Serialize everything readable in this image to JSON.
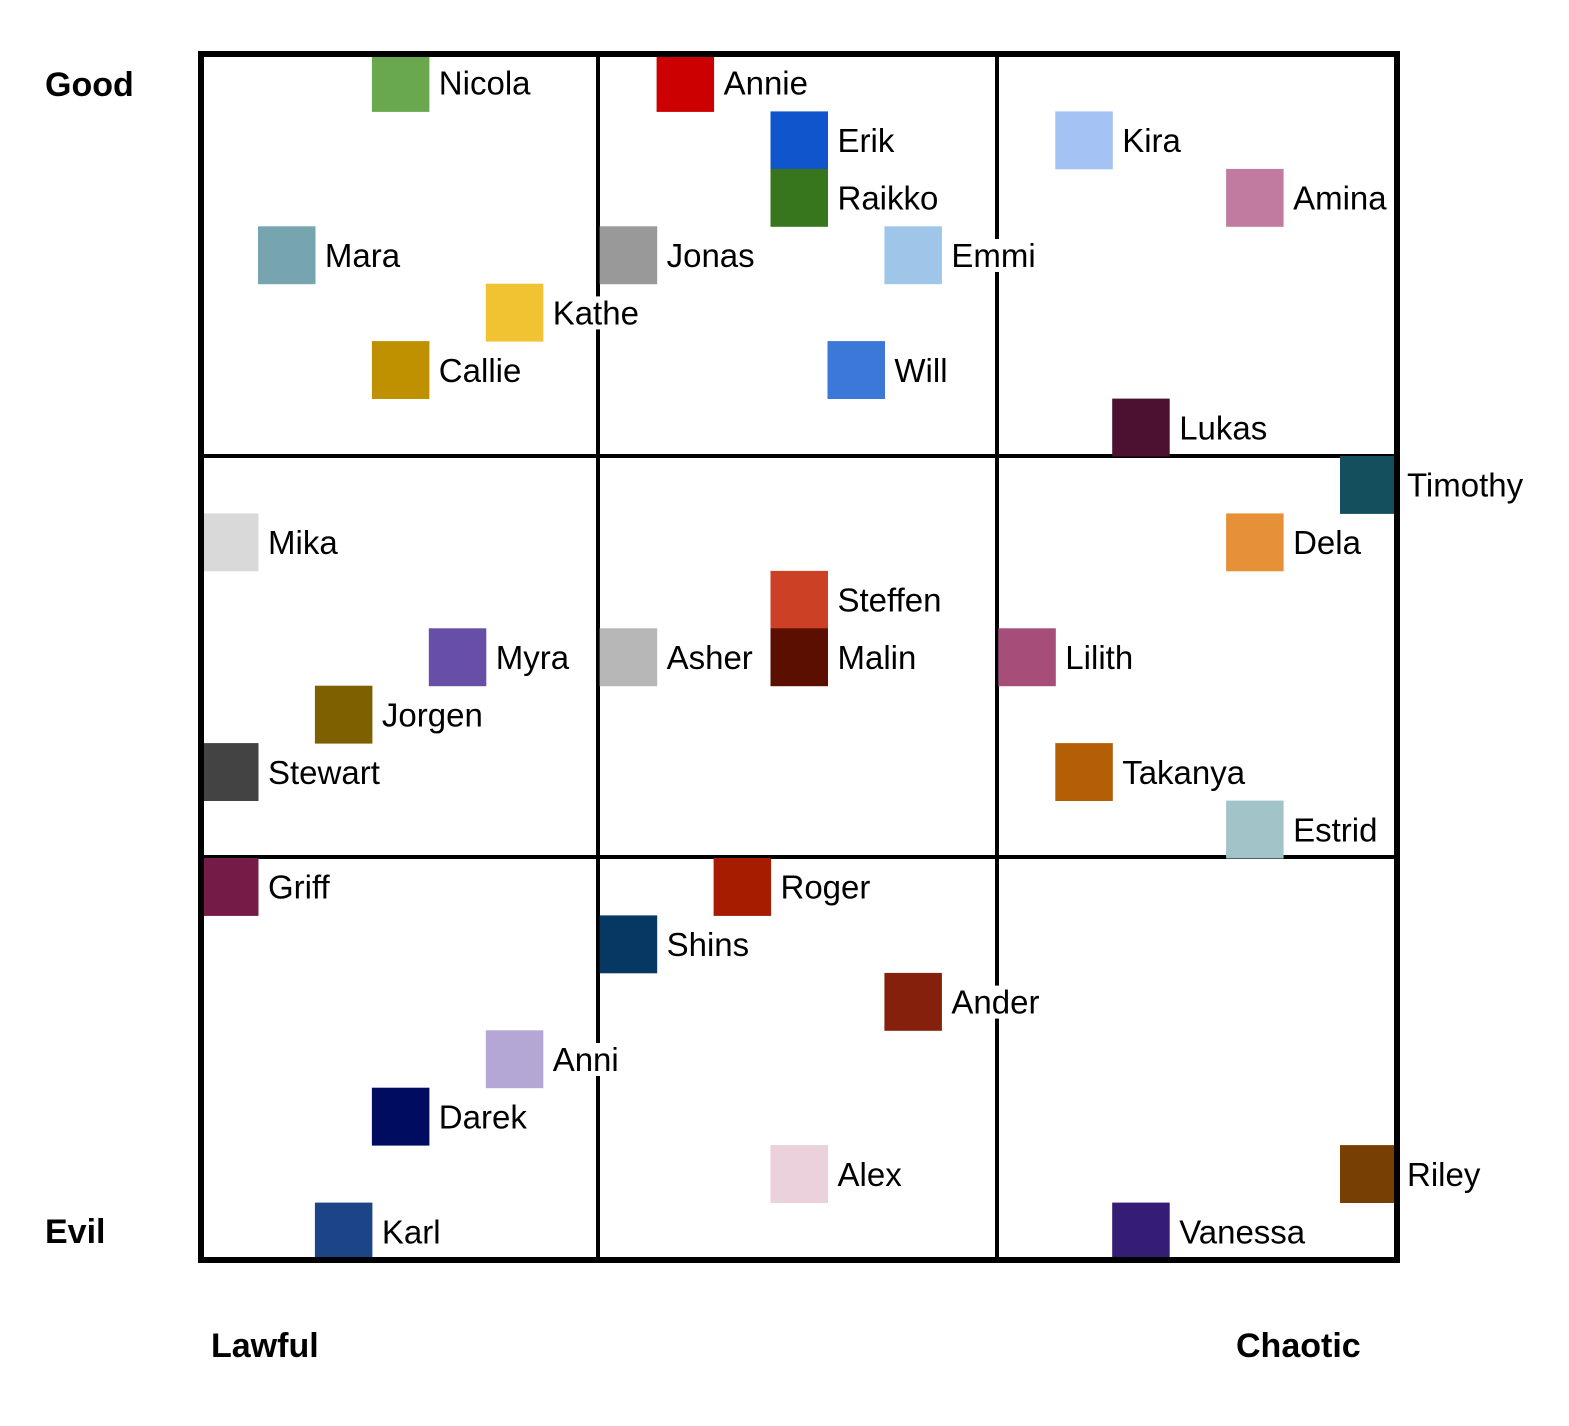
{
  "axes": {
    "top_label": "Good",
    "bottom_label": "Evil",
    "left_label": "Lawful",
    "right_label": "Chaotic"
  },
  "chart_data": {
    "type": "scatter",
    "xlim": [
      0,
      21
    ],
    "ylim": [
      0,
      21
    ],
    "grid": "3x3",
    "points": [
      {
        "name": "Nicola",
        "x": 3,
        "y": 0,
        "color": "#6aa84f"
      },
      {
        "name": "Annie",
        "x": 8,
        "y": 0,
        "color": "#cc0000"
      },
      {
        "name": "Erik",
        "x": 10,
        "y": 1,
        "color": "#1155cc"
      },
      {
        "name": "Raikko",
        "x": 10,
        "y": 2,
        "color": "#38761d"
      },
      {
        "name": "Kira",
        "x": 15,
        "y": 1,
        "color": "#a4c2f4"
      },
      {
        "name": "Amina",
        "x": 18,
        "y": 2,
        "color": "#c27ba0"
      },
      {
        "name": "Mara",
        "x": 1,
        "y": 3,
        "color": "#76a5af"
      },
      {
        "name": "Jonas",
        "x": 7,
        "y": 3,
        "color": "#999999"
      },
      {
        "name": "Emmi",
        "x": 12,
        "y": 3,
        "color": "#9fc5e8"
      },
      {
        "name": "Kathe",
        "x": 5,
        "y": 4,
        "color": "#f1c232"
      },
      {
        "name": "Callie",
        "x": 3,
        "y": 5,
        "color": "#bf9000"
      },
      {
        "name": "Will",
        "x": 11,
        "y": 5,
        "color": "#3c78d8"
      },
      {
        "name": "Lukas",
        "x": 16,
        "y": 6,
        "color": "#4c1130"
      },
      {
        "name": "Timothy",
        "x": 20,
        "y": 7,
        "color": "#134f5c"
      },
      {
        "name": "Mika",
        "x": 0,
        "y": 8,
        "color": "#d9d9d9"
      },
      {
        "name": "Dela",
        "x": 18,
        "y": 8,
        "color": "#e69138"
      },
      {
        "name": "Steffen",
        "x": 10,
        "y": 9,
        "color": "#cc4125"
      },
      {
        "name": "Myra",
        "x": 4,
        "y": 10,
        "color": "#674ea7"
      },
      {
        "name": "Asher",
        "x": 7,
        "y": 10,
        "color": "#b7b7b7"
      },
      {
        "name": "Malin",
        "x": 10,
        "y": 10,
        "color": "#5b0f00"
      },
      {
        "name": "Lilith",
        "x": 14,
        "y": 10,
        "color": "#a64d79"
      },
      {
        "name": "Jorgen",
        "x": 2,
        "y": 11,
        "color": "#7f6000"
      },
      {
        "name": "Stewart",
        "x": 0,
        "y": 12,
        "color": "#434343"
      },
      {
        "name": "Takanya",
        "x": 15,
        "y": 12,
        "color": "#b45f06"
      },
      {
        "name": "Estrid",
        "x": 18,
        "y": 13,
        "color": "#a2c4c9"
      },
      {
        "name": "Griff",
        "x": 0,
        "y": 14,
        "color": "#741b47"
      },
      {
        "name": "Roger",
        "x": 9,
        "y": 14,
        "color": "#a61c00"
      },
      {
        "name": "Shins",
        "x": 7,
        "y": 15,
        "color": "#073763"
      },
      {
        "name": "Ander",
        "x": 12,
        "y": 16,
        "color": "#85200c"
      },
      {
        "name": "Anni",
        "x": 5,
        "y": 17,
        "color": "#b4a7d6"
      },
      {
        "name": "Darek",
        "x": 3,
        "y": 18,
        "color": "#000c5f"
      },
      {
        "name": "Alex",
        "x": 10,
        "y": 19,
        "color": "#ead1dc"
      },
      {
        "name": "Riley",
        "x": 20,
        "y": 19,
        "color": "#783f04"
      },
      {
        "name": "Karl",
        "x": 2,
        "y": 20,
        "color": "#1c4587"
      },
      {
        "name": "Vanessa",
        "x": 16,
        "y": 20,
        "color": "#351c75"
      }
    ]
  }
}
